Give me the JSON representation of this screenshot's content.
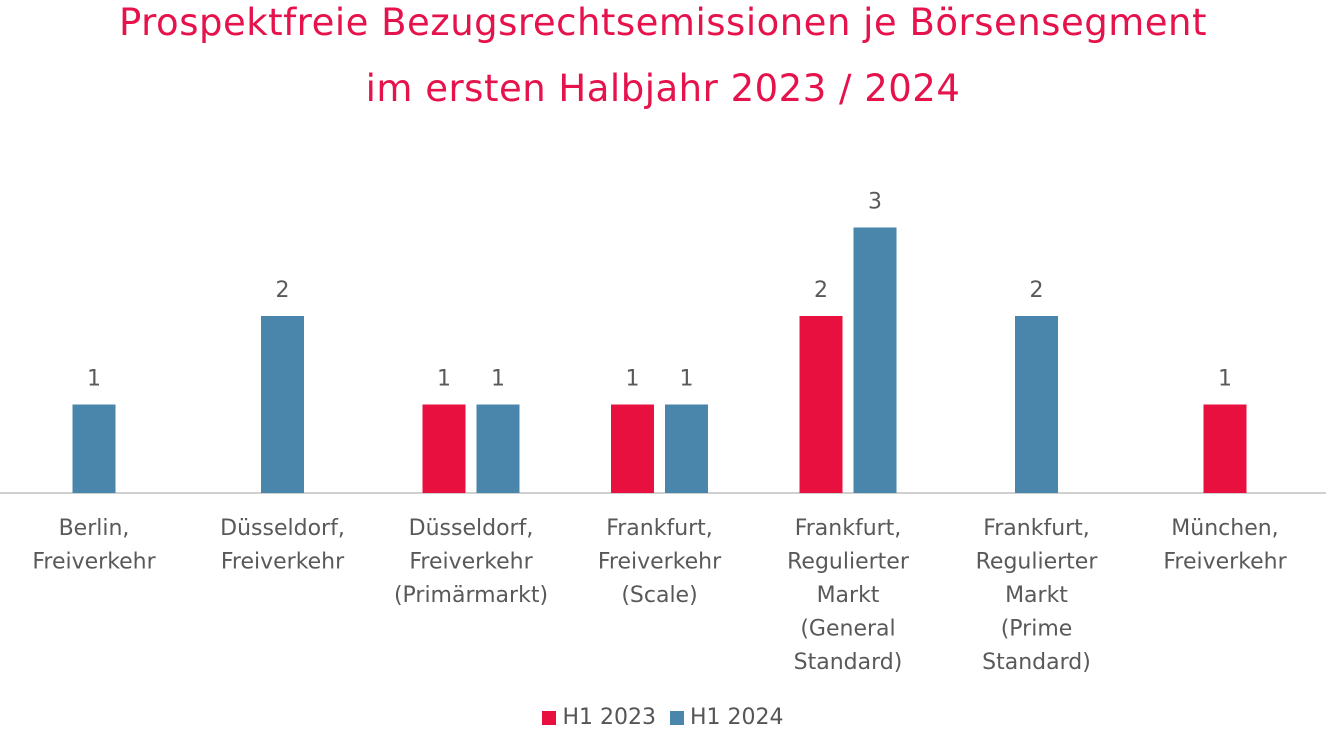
{
  "colors": {
    "title": "#e6124c",
    "h1_2023": "#e8103f",
    "h1_2024": "#4a86ab",
    "axis": "#d0d0d0",
    "text": "#595959"
  },
  "chart_data": {
    "type": "bar",
    "title": "Prospektfreie Bezugsrechtsemissionen je Börsensegment",
    "subtitle": "im ersten Halbjahr 2023 / 2024",
    "categories": [
      [
        "Berlin,",
        "Freiverkehr"
      ],
      [
        "Düsseldorf,",
        "Freiverkehr"
      ],
      [
        "Düsseldorf,",
        "Freiverkehr",
        "(Primärmarkt)"
      ],
      [
        "Frankfurt,",
        "Freiverkehr",
        "(Scale)"
      ],
      [
        "Frankfurt,",
        "Regulierter",
        "Markt",
        "(General",
        "Standard)"
      ],
      [
        "Frankfurt,",
        "Regulierter",
        "Markt",
        "(Prime",
        "Standard)"
      ],
      [
        "München,",
        "Freiverkehr"
      ]
    ],
    "series": [
      {
        "name": "H1 2023",
        "values": [
          0,
          0,
          1,
          1,
          2,
          0,
          1
        ]
      },
      {
        "name": "H1 2024",
        "values": [
          1,
          2,
          1,
          1,
          3,
          2,
          0
        ]
      }
    ],
    "ylim": [
      0,
      3
    ],
    "grid": false,
    "legend": "bottom-center"
  }
}
